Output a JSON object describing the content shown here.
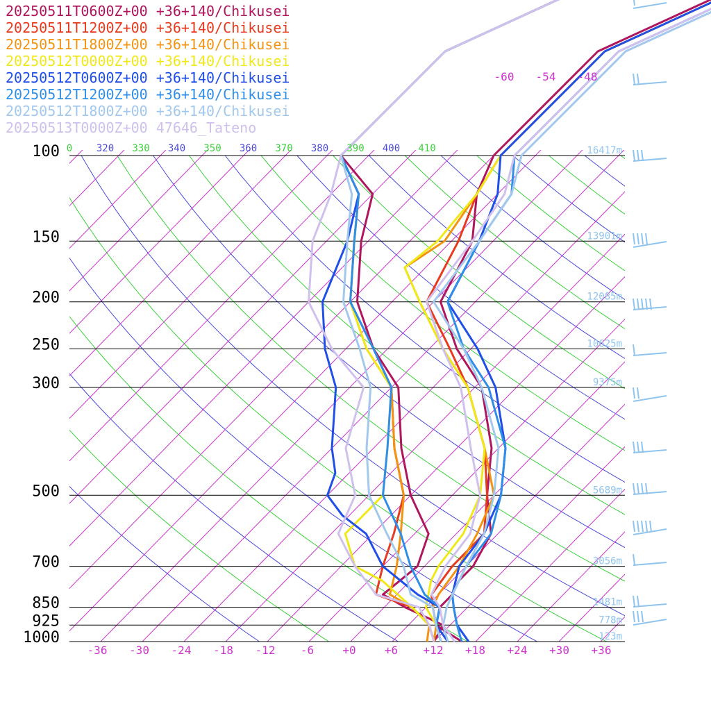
{
  "chart_data": {
    "type": "line",
    "title": "",
    "xlabel": "",
    "ylabel": "",
    "x_unit": "degC",
    "y_scale": "log-pressure",
    "xlim": [
      -40,
      40
    ],
    "ylim": [
      1000,
      100
    ],
    "temperature_ticks": [
      "-36",
      "-30",
      "-24",
      "-18",
      "-12",
      "-6",
      "+0",
      "+6",
      "+12",
      "+18",
      "+24",
      "+30",
      "+36"
    ],
    "pressure_levels": [
      {
        "p": 100,
        "label": "100",
        "height": "16417m"
      },
      {
        "p": 150,
        "label": "150",
        "height": "13901m"
      },
      {
        "p": 200,
        "label": "200",
        "height": "12085m"
      },
      {
        "p": 250,
        "label": "250",
        "height": "10625m"
      },
      {
        "p": 300,
        "label": "300",
        "height": "9375m"
      },
      {
        "p": 500,
        "label": "500",
        "height": "5689m"
      },
      {
        "p": 700,
        "label": "700",
        "height": "3056m"
      },
      {
        "p": 850,
        "label": "850",
        "height": "1481m"
      },
      {
        "p": 925,
        "label": "925",
        "height": "778m"
      },
      {
        "p": 1000,
        "label": "1000",
        "height": "123m"
      }
    ],
    "isotherm_labels": [
      "-60",
      "-54",
      "-48"
    ],
    "potential_temp_labels": [
      {
        "text": "0",
        "color": "#3ad03a"
      },
      {
        "text": "320",
        "color": "#4a4ad8"
      },
      {
        "text": "330",
        "color": "#3ad03a"
      },
      {
        "text": "340",
        "color": "#4a4ad8"
      },
      {
        "text": "350",
        "color": "#3ad03a"
      },
      {
        "text": "360",
        "color": "#4a4ad8"
      },
      {
        "text": "370",
        "color": "#3ad03a"
      },
      {
        "text": "380",
        "color": "#4a4ad8"
      },
      {
        "text": "390",
        "color": "#3ad03a"
      },
      {
        "text": "400",
        "color": "#4a4ad8"
      },
      {
        "text": "410",
        "color": "#3ad03a"
      }
    ],
    "colors": {
      "grid": "#000000",
      "isotherm": "#cc33cc",
      "tick_label": "#cc33cc",
      "dry_adiabat_a": "#3ad03a",
      "dry_adiabat_b": "#4a4ad8",
      "height_label": "#8fc4ee",
      "wind": "#8fc4ee",
      "pressure_label": "#000000"
    },
    "series": [
      {
        "name": "20250511T0600Z+00 +36+140/Chikusei",
        "color": "#b0165e",
        "temp": [
          [
            16,
            1000
          ],
          [
            10,
            925
          ],
          [
            8,
            850
          ],
          [
            8,
            800
          ],
          [
            7,
            750
          ],
          [
            7,
            700
          ],
          [
            5,
            600
          ],
          [
            -1,
            500
          ],
          [
            -7,
            400
          ],
          [
            -17,
            300
          ],
          [
            -26,
            250
          ],
          [
            -35,
            200
          ],
          [
            -39,
            150
          ],
          [
            -45,
            120
          ],
          [
            -48,
            100
          ]
        ],
        "dew": [
          [
            12,
            1000
          ],
          [
            11,
            925
          ],
          [
            3,
            850
          ],
          [
            -2,
            800
          ],
          [
            -1,
            700
          ],
          [
            -4,
            600
          ],
          [
            -12,
            500
          ],
          [
            -20,
            400
          ],
          [
            -29,
            300
          ],
          [
            -38,
            250
          ],
          [
            -47,
            200
          ],
          [
            -55,
            150
          ],
          [
            -60,
            120
          ],
          [
            -70,
            100
          ]
        ]
      },
      {
        "name": "20250511T1200Z+00 +36+140/Chikusei",
        "color": "#e63b1e",
        "temp": [
          [
            13,
            1000
          ],
          [
            10,
            925
          ],
          [
            7,
            850
          ],
          [
            5,
            800
          ],
          [
            4,
            700
          ],
          [
            4,
            600
          ],
          [
            -1,
            500
          ],
          [
            -8,
            400
          ],
          [
            -19,
            300
          ],
          [
            -27,
            250
          ],
          [
            -37,
            200
          ],
          [
            -41,
            150
          ],
          [
            -45,
            120
          ],
          [
            -47,
            100
          ]
        ],
        "dew": [
          [
            12,
            1000
          ],
          [
            9,
            925
          ],
          [
            4,
            850
          ],
          [
            -3,
            800
          ],
          [
            -6,
            700
          ],
          [
            -9,
            600
          ],
          [
            -13,
            500
          ],
          [
            -21,
            400
          ],
          [
            -30,
            300
          ],
          [
            -38,
            250
          ],
          [
            -48,
            200
          ],
          [
            -56,
            150
          ],
          [
            -62,
            120
          ],
          [
            -70,
            100
          ]
        ]
      },
      {
        "name": "20250511T1800Z+00 +36+140/Chikusei",
        "color": "#f29412",
        "temp": [
          [
            12,
            1000
          ],
          [
            10,
            925
          ],
          [
            7,
            850
          ],
          [
            6,
            800
          ],
          [
            5,
            700
          ],
          [
            3,
            600
          ],
          [
            0,
            500
          ],
          [
            -8,
            400
          ],
          [
            -19,
            300
          ],
          [
            -28,
            250
          ],
          [
            -38,
            200
          ],
          [
            -45,
            170
          ],
          [
            -43,
            150
          ],
          [
            -45,
            120
          ],
          [
            -47,
            100
          ]
        ],
        "dew": [
          [
            11,
            1000
          ],
          [
            9,
            925
          ],
          [
            4,
            850
          ],
          [
            -1,
            800
          ],
          [
            -4,
            700
          ],
          [
            -8,
            600
          ],
          [
            -13,
            500
          ],
          [
            -21,
            400
          ],
          [
            -30,
            300
          ],
          [
            -39,
            250
          ],
          [
            -48,
            200
          ],
          [
            -56,
            150
          ],
          [
            -62,
            120
          ],
          [
            -70,
            100
          ]
        ]
      },
      {
        "name": "20250512T0000Z+00 +36+140/Chikusei",
        "color": "#f0e81a",
        "temp": [
          [
            13,
            1000
          ],
          [
            10,
            925
          ],
          [
            6,
            850
          ],
          [
            3,
            750
          ],
          [
            2,
            700
          ],
          [
            1,
            600
          ],
          [
            -2,
            500
          ],
          [
            -8,
            400
          ],
          [
            -19,
            300
          ],
          [
            -28,
            250
          ],
          [
            -38,
            200
          ],
          [
            -45,
            170
          ],
          [
            -44,
            150
          ],
          [
            -45,
            120
          ],
          [
            -47,
            100
          ]
        ],
        "dew": [
          [
            12,
            1000
          ],
          [
            9,
            925
          ],
          [
            4,
            850
          ],
          [
            -4,
            750
          ],
          [
            -10,
            700
          ],
          [
            -16,
            600
          ],
          [
            -16,
            500
          ],
          [
            -22,
            400
          ],
          [
            -30,
            300
          ],
          [
            -39,
            250
          ],
          [
            -48,
            200
          ],
          [
            -56,
            150
          ],
          [
            -62,
            120
          ],
          [
            -70,
            100
          ]
        ]
      },
      {
        "name": "20250512T0600Z+00 +36+140/Chikusei",
        "color": "#1f4fe6",
        "temp": [
          [
            17,
            1000
          ],
          [
            13,
            925
          ],
          [
            10,
            850
          ],
          [
            8,
            800
          ],
          [
            5,
            700
          ],
          [
            4,
            600
          ],
          [
            1,
            500
          ],
          [
            -5,
            400
          ],
          [
            -15,
            300
          ],
          [
            -23,
            250
          ],
          [
            -34,
            200
          ],
          [
            -38,
            150
          ],
          [
            -42,
            120
          ],
          [
            -47,
            100
          ]
        ],
        "dew": [
          [
            14,
            1000
          ],
          [
            10,
            925
          ],
          [
            8,
            850
          ],
          [
            3,
            800
          ],
          [
            -6,
            700
          ],
          [
            -13,
            600
          ],
          [
            -19,
            550
          ],
          [
            -24,
            500
          ],
          [
            -26,
            450
          ],
          [
            -30,
            400
          ],
          [
            -38,
            300
          ],
          [
            -45,
            250
          ],
          [
            -52,
            200
          ],
          [
            -57,
            150
          ],
          [
            -62,
            120
          ],
          [
            -70,
            100
          ]
        ]
      },
      {
        "name": "20250512T1200Z+00 +36+140/Chikusei",
        "color": "#2f8fe8",
        "temp": [
          [
            16,
            1000
          ],
          [
            13,
            925
          ],
          [
            10,
            850
          ],
          [
            8,
            800
          ],
          [
            6,
            700
          ],
          [
            5,
            600
          ],
          [
            1,
            500
          ],
          [
            -5,
            400
          ],
          [
            -16,
            300
          ],
          [
            -25,
            250
          ],
          [
            -34,
            200
          ],
          [
            -38,
            150
          ],
          [
            -40,
            120
          ],
          [
            -45,
            100
          ]
        ],
        "dew": [
          [
            13,
            1000
          ],
          [
            10,
            925
          ],
          [
            8,
            850
          ],
          [
            4,
            800
          ],
          [
            -2,
            700
          ],
          [
            -8,
            600
          ],
          [
            -16,
            500
          ],
          [
            -22,
            400
          ],
          [
            -30,
            300
          ],
          [
            -38,
            250
          ],
          [
            -48,
            200
          ],
          [
            -56,
            150
          ],
          [
            -62,
            120
          ],
          [
            -70,
            100
          ]
        ]
      },
      {
        "name": "20250512T1800Z+00 +36+140/Chikusei",
        "color": "#a2c8ee",
        "temp": [
          [
            14,
            1000
          ],
          [
            11,
            925
          ],
          [
            9,
            850
          ],
          [
            8,
            800
          ],
          [
            6,
            700
          ],
          [
            4,
            600
          ],
          [
            0,
            500
          ],
          [
            -6,
            400
          ],
          [
            -17,
            300
          ],
          [
            -25,
            250
          ],
          [
            -36,
            200
          ],
          [
            -38,
            150
          ],
          [
            -40,
            120
          ],
          [
            -44,
            100
          ]
        ],
        "dew": [
          [
            13,
            1000
          ],
          [
            10,
            925
          ],
          [
            7,
            850
          ],
          [
            2,
            800
          ],
          [
            -3,
            700
          ],
          [
            -10,
            600
          ],
          [
            -18,
            500
          ],
          [
            -25,
            400
          ],
          [
            -33,
            300
          ],
          [
            -40,
            250
          ],
          [
            -49,
            200
          ],
          [
            -57,
            150
          ],
          [
            -63,
            120
          ],
          [
            -70,
            100
          ]
        ]
      },
      {
        "name": "20250513T0000Z+00 47646_Tateno",
        "color": "#d0c0ee",
        "temp": [
          [
            15,
            1000
          ],
          [
            11,
            925
          ],
          [
            8,
            850
          ],
          [
            5,
            800
          ],
          [
            3,
            700
          ],
          [
            2,
            600
          ],
          [
            -2,
            500
          ],
          [
            -10,
            400
          ],
          [
            -20,
            300
          ],
          [
            -28,
            250
          ],
          [
            -37,
            200
          ],
          [
            -39,
            150
          ],
          [
            -41,
            120
          ],
          [
            -45,
            100
          ]
        ],
        "dew": [
          [
            12,
            1000
          ],
          [
            9,
            925
          ],
          [
            5,
            850
          ],
          [
            -3,
            800
          ],
          [
            -10,
            700
          ],
          [
            -17,
            600
          ],
          [
            -20,
            500
          ],
          [
            -28,
            400
          ],
          [
            -34,
            300
          ],
          [
            -44,
            250
          ],
          [
            -54,
            200
          ],
          [
            -62,
            150
          ],
          [
            -66,
            120
          ],
          [
            -70,
            100
          ]
        ]
      }
    ]
  }
}
